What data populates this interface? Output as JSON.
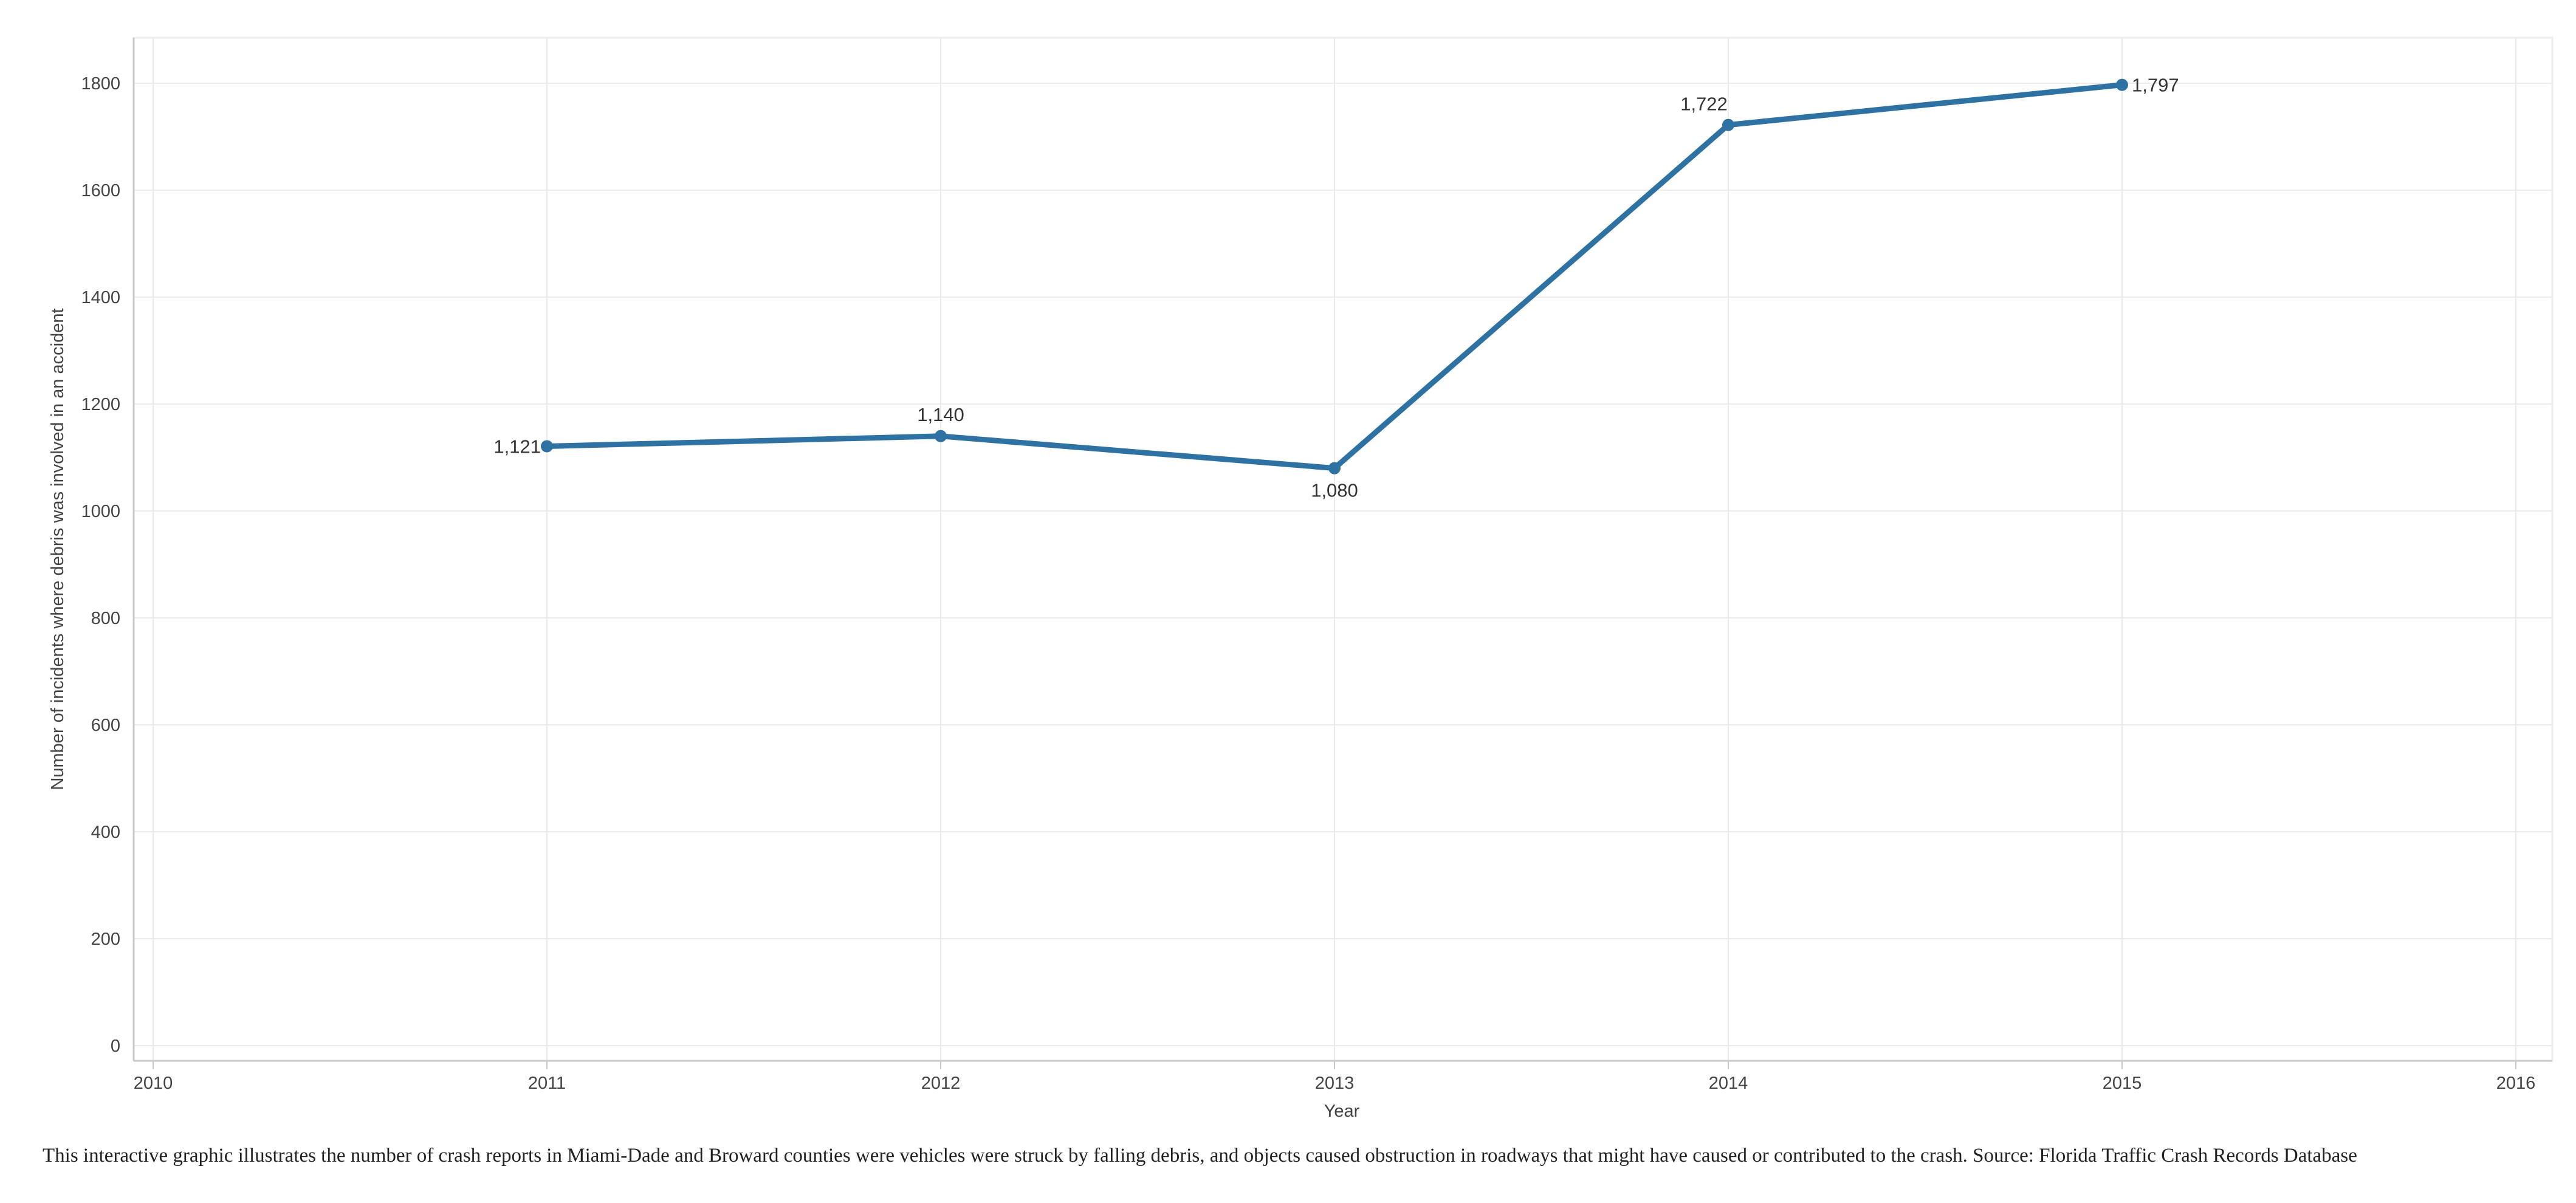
{
  "chart_data": {
    "type": "line",
    "x": [
      2011,
      2012,
      2013,
      2014,
      2015
    ],
    "series": [
      {
        "values": [
          1121,
          1140,
          1080,
          1722,
          1797
        ],
        "labels": [
          "1,121",
          "1,140",
          "1,080",
          "1,722",
          "1,797"
        ]
      }
    ],
    "xlabel": "Year",
    "ylabel": "Number of incidents where debris was involved in an accident",
    "xlim": [
      2010,
      2016
    ],
    "ylim": [
      0,
      1800
    ],
    "x_ticks": [
      2010,
      2011,
      2012,
      2013,
      2014,
      2015,
      2016
    ],
    "y_ticks": [
      0,
      200,
      400,
      600,
      800,
      1000,
      1200,
      1400,
      1600,
      1800
    ],
    "x_tick_labels": [
      "2010",
      "2011",
      "2012",
      "2013",
      "2014",
      "2015",
      "2016"
    ],
    "y_tick_labels": [
      "0",
      "200",
      "400",
      "600",
      "800",
      "1000",
      "1200",
      "1400",
      "1600",
      "1800"
    ],
    "grid": true,
    "line_color": "#2e72a4",
    "grid_color": "#ebebeb"
  },
  "caption": "This interactive graphic illustrates the number of crash reports in Miami-Dade and Broward counties were vehicles were struck by falling debris, and objects caused obstruction in roadways that might have caused or contributed to the crash. Source: Florida Traffic Crash Records Database"
}
